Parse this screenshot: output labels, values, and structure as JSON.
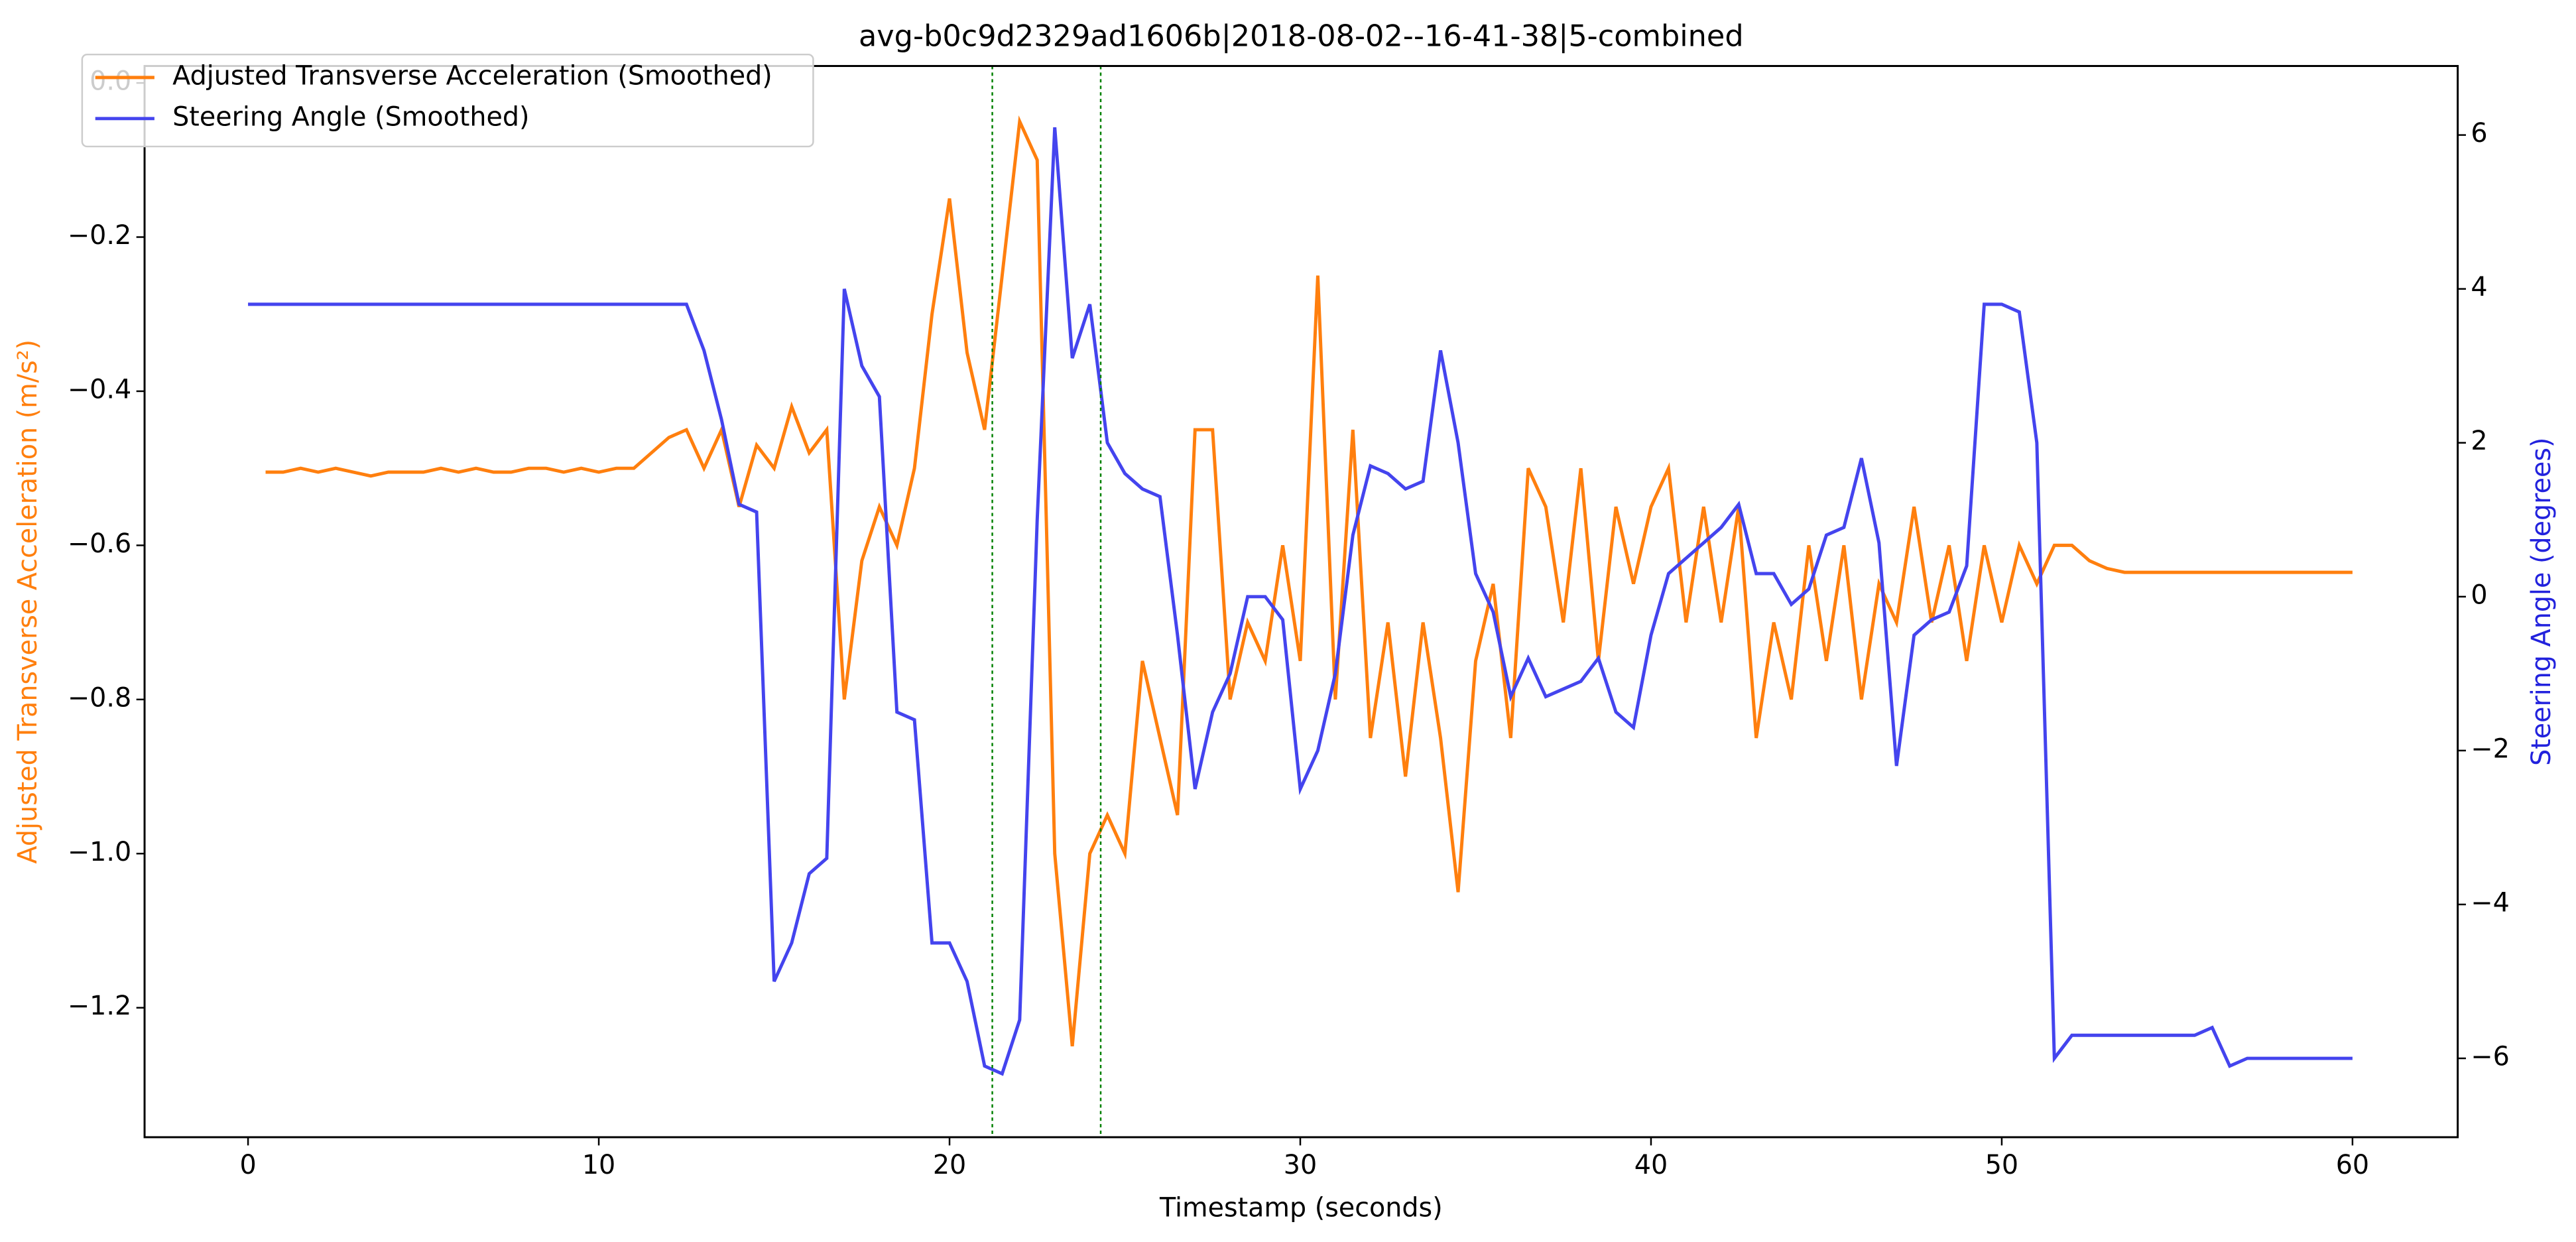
{
  "chart_data": {
    "type": "line",
    "title": "avg-b0c9d2329ad1606b|2018-08-02--16-41-38|5-combined",
    "xlabel": "Timestamp (seconds)",
    "ylabel": "Adjusted Transverse Acceleration (m/s²)",
    "y2label": "Steering Angle (degrees)",
    "ylabel_color": "#ff7f0e",
    "y2label_color": "#2222dd",
    "x": [
      0,
      0.5,
      1,
      1.5,
      2,
      2.5,
      3,
      3.5,
      4,
      4.5,
      5,
      5.5,
      6,
      6.5,
      7,
      7.5,
      8,
      8.5,
      9,
      9.5,
      10,
      10.5,
      11,
      11.5,
      12,
      12.5,
      13,
      13.5,
      14,
      14.5,
      15,
      15.5,
      16,
      16.5,
      17,
      17.5,
      18,
      18.5,
      19,
      19.5,
      20,
      20.5,
      21,
      21.5,
      22,
      22.5,
      23,
      23.5,
      24,
      24.5,
      25,
      25.5,
      26,
      26.5,
      27,
      27.5,
      28,
      28.5,
      29,
      29.5,
      30,
      30.5,
      31,
      31.5,
      32,
      32.5,
      33,
      33.5,
      34,
      34.5,
      35,
      35.5,
      36,
      36.5,
      37,
      37.5,
      38,
      38.5,
      39,
      39.5,
      40,
      40.5,
      41,
      41.5,
      42,
      42.5,
      43,
      43.5,
      44,
      44.5,
      45,
      45.5,
      46,
      46.5,
      47,
      47.5,
      48,
      48.5,
      49,
      49.5,
      50,
      50.5,
      51,
      51.5,
      52,
      52.5,
      53,
      53.5,
      54,
      54.5,
      55,
      55.5,
      56,
      56.5,
      57,
      57.5,
      58,
      58.5,
      59,
      59.5,
      60
    ],
    "series": [
      {
        "name": "Adjusted Transverse Acceleration (Smoothed)",
        "color": "#ff7f0e",
        "values": [
          null,
          -0.505,
          -0.505,
          -0.5,
          -0.505,
          -0.5,
          -0.505,
          -0.51,
          -0.505,
          -0.505,
          -0.505,
          -0.5,
          -0.505,
          -0.5,
          -0.505,
          -0.505,
          -0.5,
          -0.5,
          -0.505,
          -0.5,
          -0.505,
          -0.5,
          -0.5,
          -0.48,
          -0.46,
          -0.45,
          -0.5,
          -0.45,
          -0.55,
          -0.47,
          -0.5,
          -0.42,
          -0.48,
          -0.45,
          -0.8,
          -0.62,
          -0.55,
          -0.6,
          -0.5,
          -0.3,
          -0.15,
          -0.35,
          -0.45,
          -0.25,
          -0.05,
          -0.1,
          -1.0,
          -1.25,
          -1.0,
          -0.95,
          -1.0,
          -0.75,
          -0.85,
          -0.95,
          -0.45,
          -0.45,
          -0.8,
          -0.7,
          -0.75,
          -0.6,
          -0.75,
          -0.25,
          -0.8,
          -0.45,
          -0.85,
          -0.7,
          -0.9,
          -0.7,
          -0.85,
          -1.05,
          -0.75,
          -0.65,
          -0.85,
          -0.5,
          -0.55,
          -0.7,
          -0.5,
          -0.75,
          -0.55,
          -0.65,
          -0.55,
          -0.5,
          -0.7,
          -0.55,
          -0.7,
          -0.55,
          -0.85,
          -0.7,
          -0.8,
          -0.6,
          -0.75,
          -0.6,
          -0.8,
          -0.65,
          -0.7,
          -0.55,
          -0.7,
          -0.6,
          -0.75,
          -0.6,
          -0.7,
          -0.6,
          -0.65,
          -0.6,
          -0.6,
          -0.62,
          -0.63,
          -0.635,
          -0.635,
          -0.635,
          -0.635,
          -0.635,
          -0.635,
          -0.635,
          -0.635,
          -0.635,
          -0.635,
          -0.635,
          -0.635,
          -0.635,
          -0.635
        ]
      },
      {
        "name": "Steering Angle (Smoothed)",
        "color": "#4444ee",
        "axis": "y2",
        "values": [
          3.8,
          3.8,
          3.8,
          3.8,
          3.8,
          3.8,
          3.8,
          3.8,
          3.8,
          3.8,
          3.8,
          3.8,
          3.8,
          3.8,
          3.8,
          3.8,
          3.8,
          3.8,
          3.8,
          3.8,
          3.8,
          3.8,
          3.8,
          3.8,
          3.8,
          3.8,
          3.2,
          2.3,
          1.2,
          1.1,
          -5.0,
          -4.5,
          -3.6,
          -3.4,
          4.0,
          3.0,
          2.6,
          -1.5,
          -1.6,
          -4.5,
          -4.5,
          -5.0,
          -6.1,
          -6.2,
          -5.5,
          1.0,
          6.1,
          3.1,
          3.8,
          2.0,
          1.6,
          1.4,
          1.3,
          -0.5,
          -2.5,
          -1.5,
          -1.0,
          0.0,
          0.0,
          -0.3,
          -2.5,
          -2.0,
          -1.0,
          0.8,
          1.7,
          1.6,
          1.4,
          1.5,
          3.2,
          2.0,
          0.3,
          -0.2,
          -1.3,
          -0.8,
          -1.3,
          -1.2,
          -1.1,
          -0.8,
          -1.5,
          -1.7,
          -0.5,
          0.3,
          0.5,
          0.7,
          0.9,
          1.2,
          0.3,
          0.3,
          -0.1,
          0.1,
          0.8,
          0.9,
          1.8,
          0.7,
          -2.2,
          -0.5,
          -0.3,
          -0.2,
          0.4,
          3.8,
          3.8,
          3.7,
          2.0,
          -6.0,
          -5.7,
          -5.7,
          -5.7,
          -5.7,
          -5.7,
          -5.7,
          -5.7,
          -5.7,
          -5.6,
          -6.1,
          -6.0,
          -6.0,
          -6.0,
          -6.0,
          -6.0,
          -6.0,
          -6.0
        ]
      }
    ],
    "xlim": [
      -2.95,
      63.0
    ],
    "xticks": [
      0,
      10,
      20,
      30,
      40,
      50,
      60
    ],
    "ylim": [
      -1.368,
      0.022
    ],
    "yticks": [
      {
        "value": 0,
        "label": "0.0"
      },
      {
        "value": -0.2,
        "label": "−0.2"
      },
      {
        "value": -0.4,
        "label": "−0.4"
      },
      {
        "value": -0.6,
        "label": "−0.6"
      },
      {
        "value": -0.8,
        "label": "−0.8"
      },
      {
        "value": -1.0,
        "label": "−1.0"
      },
      {
        "value": -1.2,
        "label": "−1.2"
      }
    ],
    "y2lim": [
      -7.025,
      6.897
    ],
    "y2ticks": [
      {
        "value": -6,
        "label": "−6"
      },
      {
        "value": -4,
        "label": "−4"
      },
      {
        "value": -2,
        "label": "−2"
      },
      0,
      2,
      4,
      6
    ],
    "vlines": [
      21.22,
      24.31
    ],
    "vline_color": "#008000",
    "legend": "upper left"
  }
}
